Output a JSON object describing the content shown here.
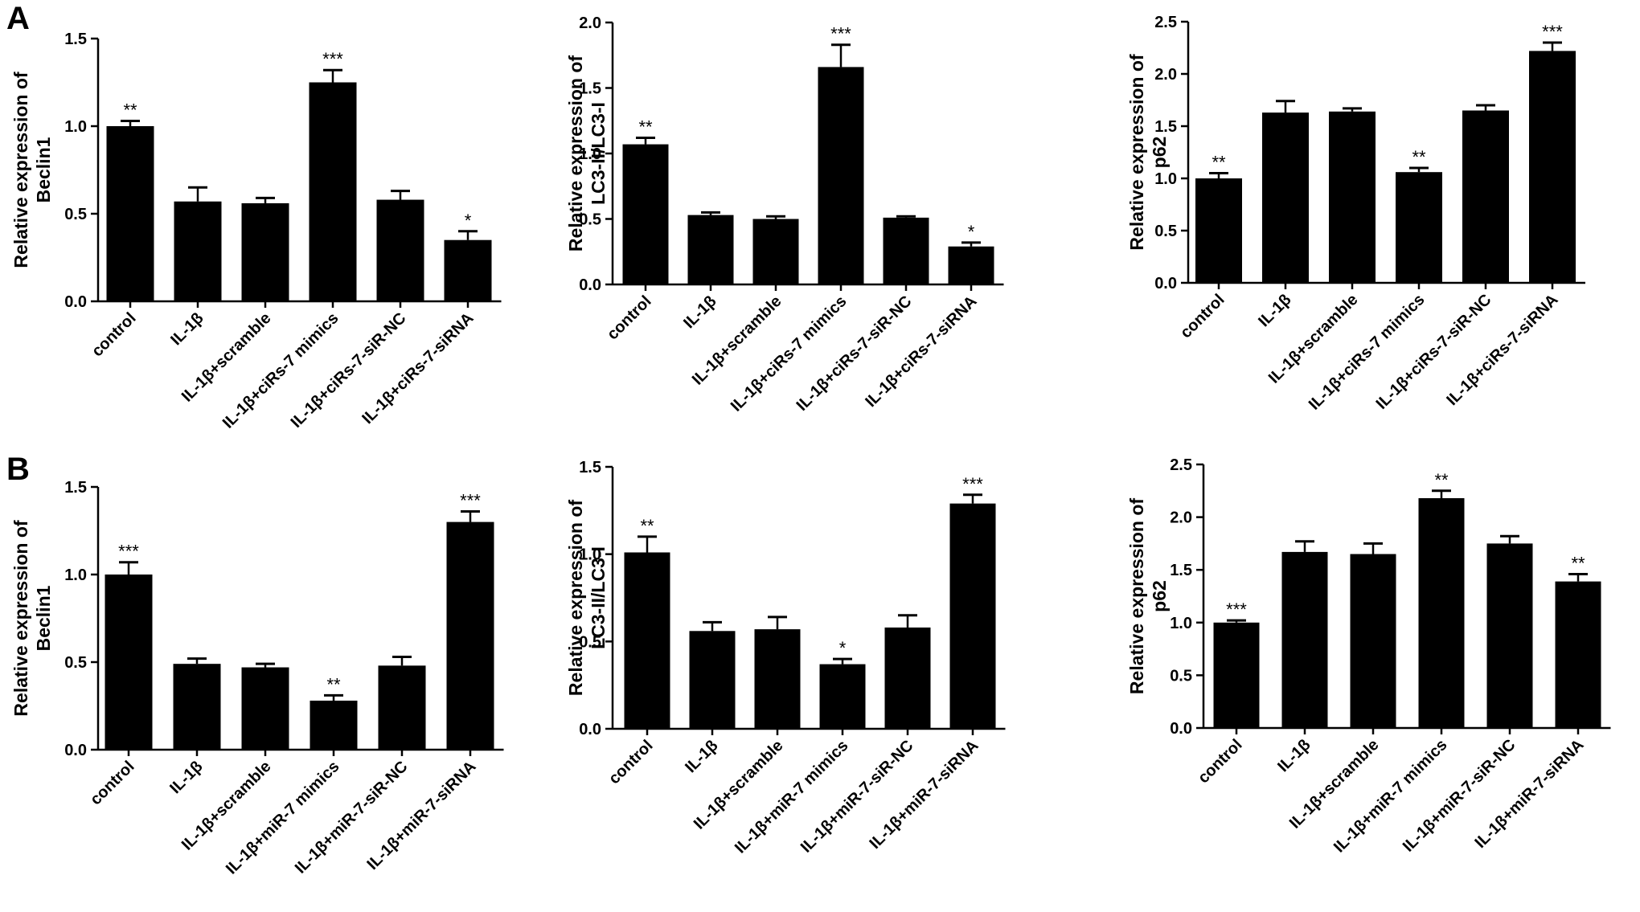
{
  "panels": [
    {
      "letter": "A"
    },
    {
      "letter": "B"
    }
  ],
  "chart_data": [
    {
      "type": "bar",
      "panel": "A",
      "ylabel_lines": [
        "Relative expression of",
        "Beclin1"
      ],
      "ylim": [
        0,
        1.5
      ],
      "yticks": [
        "0.0",
        "0.5",
        "1.0",
        "1.5"
      ],
      "ytick_values": [
        0,
        0.5,
        1.0,
        1.5
      ],
      "categories": [
        "control",
        "IL-1β",
        "IL-1β+scramble",
        "IL-1β+ciRs-7 mimics",
        "IL-1β+ciRs-7-siR-NC",
        "IL-1β+ciRs-7-siRNA"
      ],
      "values": [
        1.0,
        0.57,
        0.56,
        1.25,
        0.58,
        0.35
      ],
      "errors": [
        0.03,
        0.08,
        0.03,
        0.07,
        0.05,
        0.05
      ],
      "significance": [
        "**",
        "",
        "",
        "***",
        "",
        "*"
      ]
    },
    {
      "type": "bar",
      "panel": "A",
      "ylabel_lines": [
        "Relative expression of",
        "LC3-II/LC3-I"
      ],
      "ylim": [
        0,
        2.0
      ],
      "yticks": [
        "0.0",
        "0.5",
        "1.0",
        "1.5",
        "2.0"
      ],
      "ytick_values": [
        0,
        0.5,
        1.0,
        1.5,
        2.0
      ],
      "categories": [
        "control",
        "IL-1β",
        "IL-1β+scramble",
        "IL-1β+ciRs-7 mimics",
        "IL-1β+ciRs-7-siR-NC",
        "IL-1β+ciRs-7-siRNA"
      ],
      "values": [
        1.07,
        0.53,
        0.5,
        1.66,
        0.51,
        0.29
      ],
      "errors": [
        0.05,
        0.02,
        0.02,
        0.17,
        0.01,
        0.03
      ],
      "significance": [
        "**",
        "",
        "",
        "***",
        "",
        "*"
      ]
    },
    {
      "type": "bar",
      "panel": "A",
      "ylabel_lines": [
        "Relative expression of",
        "p62"
      ],
      "ylim": [
        0,
        2.5
      ],
      "yticks": [
        "0.0",
        "0.5",
        "1.0",
        "1.5",
        "2.0",
        "2.5"
      ],
      "ytick_values": [
        0,
        0.5,
        1.0,
        1.5,
        2.0,
        2.5
      ],
      "categories": [
        "control",
        "IL-1β",
        "IL-1β+scramble",
        "IL-1β+ciRs-7 mimics",
        "IL-1β+ciRs-7-siR-NC",
        "IL-1β+ciRs-7-siRNA"
      ],
      "values": [
        1.0,
        1.63,
        1.64,
        1.06,
        1.65,
        2.22
      ],
      "errors": [
        0.05,
        0.11,
        0.03,
        0.04,
        0.05,
        0.08
      ],
      "significance": [
        "**",
        "",
        "",
        "**",
        "",
        "***"
      ]
    },
    {
      "type": "bar",
      "panel": "B",
      "ylabel_lines": [
        "Relative expression of",
        "Beclin1"
      ],
      "ylim": [
        0,
        1.5
      ],
      "yticks": [
        "0.0",
        "0.5",
        "1.0",
        "1.5"
      ],
      "ytick_values": [
        0,
        0.5,
        1.0,
        1.5
      ],
      "categories": [
        "control",
        "IL-1β",
        "IL-1β+scramble",
        "IL-1β+miR-7 mimics",
        "IL-1β+miR-7-siR-NC",
        "IL-1β+miR-7-siRNA"
      ],
      "values": [
        1.0,
        0.49,
        0.47,
        0.28,
        0.48,
        1.3
      ],
      "errors": [
        0.07,
        0.03,
        0.02,
        0.03,
        0.05,
        0.06
      ],
      "significance": [
        "***",
        "",
        "",
        "**",
        "",
        "***"
      ]
    },
    {
      "type": "bar",
      "panel": "B",
      "ylabel_lines": [
        "Relative expression of",
        "LC3-II/LC3-I"
      ],
      "ylim": [
        0,
        1.5
      ],
      "yticks": [
        "0.0",
        "0.5",
        "1.0",
        "1.5"
      ],
      "ytick_values": [
        0,
        0.5,
        1.0,
        1.5
      ],
      "categories": [
        "control",
        "IL-1β",
        "IL-1β+scramble",
        "IL-1β+miR-7 mimics",
        "IL-1β+miR-7-siR-NC",
        "IL-1β+miR-7-siRNA"
      ],
      "values": [
        1.01,
        0.56,
        0.57,
        0.37,
        0.58,
        1.29
      ],
      "errors": [
        0.09,
        0.05,
        0.07,
        0.03,
        0.07,
        0.05
      ],
      "significance": [
        "**",
        "",
        "",
        "*",
        "",
        "***"
      ]
    },
    {
      "type": "bar",
      "panel": "B",
      "ylabel_lines": [
        "Relative expression of",
        "p62"
      ],
      "ylim": [
        0,
        2.5
      ],
      "yticks": [
        "0.0",
        "0.5",
        "1.0",
        "1.5",
        "2.0",
        "2.5"
      ],
      "ytick_values": [
        0,
        0.5,
        1.0,
        1.5,
        2.0,
        2.5
      ],
      "categories": [
        "control",
        "IL-1β",
        "IL-1β+scramble",
        "IL-1β+miR-7 mimics",
        "IL-1β+miR-7-siR-NC",
        "IL-1β+miR-7-siRNA"
      ],
      "values": [
        1.0,
        1.67,
        1.65,
        2.18,
        1.75,
        1.39
      ],
      "errors": [
        0.02,
        0.1,
        0.1,
        0.07,
        0.07,
        0.07
      ],
      "significance": [
        "***",
        "",
        "",
        "**",
        "",
        "**"
      ]
    }
  ]
}
